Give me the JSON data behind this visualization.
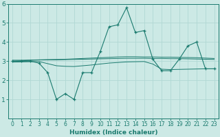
{
  "xlabel": "Humidex (Indice chaleur)",
  "x": [
    0,
    1,
    2,
    3,
    4,
    5,
    6,
    7,
    8,
    9,
    10,
    11,
    12,
    13,
    14,
    15,
    16,
    17,
    18,
    19,
    20,
    21,
    22,
    23
  ],
  "line1": [
    3.0,
    3.0,
    3.0,
    2.9,
    2.4,
    1.0,
    1.3,
    1.0,
    2.4,
    2.4,
    3.5,
    4.8,
    4.9,
    5.8,
    4.5,
    4.6,
    3.1,
    2.5,
    2.5,
    3.1,
    3.8,
    4.0,
    2.6,
    2.6
  ],
  "line2": [
    3.0,
    3.02,
    3.04,
    3.06,
    3.07,
    3.07,
    3.08,
    3.09,
    3.1,
    3.11,
    3.12,
    3.13,
    3.14,
    3.15,
    3.15,
    3.15,
    3.14,
    3.14,
    3.13,
    3.13,
    3.12,
    3.11,
    3.1,
    3.09
  ],
  "line3": [
    2.95,
    2.96,
    2.97,
    2.98,
    2.87,
    2.76,
    2.73,
    2.72,
    2.76,
    2.8,
    2.85,
    2.9,
    2.93,
    2.96,
    2.97,
    2.98,
    2.85,
    2.58,
    2.56,
    2.57,
    2.58,
    2.59,
    2.6,
    2.6
  ],
  "line4": [
    3.05,
    3.05,
    3.06,
    3.07,
    3.08,
    3.09,
    3.1,
    3.12,
    3.14,
    3.16,
    3.18,
    3.2,
    3.22,
    3.23,
    3.23,
    3.22,
    3.22,
    3.21,
    3.21,
    3.2,
    3.19,
    3.18,
    3.16,
    3.14
  ],
  "line_color": "#1a7a6e",
  "bg_color": "#cce9e5",
  "grid_color": "#b0d8d4",
  "ylim": [
    0,
    6
  ],
  "xlim": [
    -0.5,
    23.5
  ],
  "yticks": [
    1,
    2,
    3,
    4,
    5,
    6
  ],
  "xticks": [
    0,
    1,
    2,
    3,
    4,
    5,
    6,
    7,
    8,
    9,
    10,
    11,
    12,
    13,
    14,
    15,
    16,
    17,
    18,
    19,
    20,
    21,
    22,
    23
  ],
  "xlabel_fontsize": 6.5,
  "tick_fontsize": 5.5,
  "ytick_fontsize": 6.5
}
